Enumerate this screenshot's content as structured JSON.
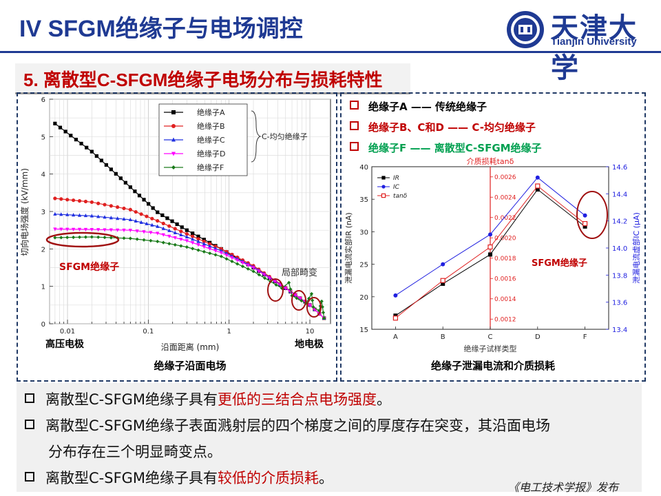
{
  "header": {
    "title": "IV SFGM绝缘子与电场调控",
    "university_cn": "天津大学",
    "university_en": "Tianjin University"
  },
  "section": {
    "subtitle": "5. 离散型C-SFGM绝缘子电场分布与损耗特性"
  },
  "left_chart": {
    "caption": "绝缘子沿面电场",
    "xlabel": "沿面距离 (mm)",
    "ylabel": "切向电场强度 (kV/mm)",
    "legend": [
      "绝缘子A",
      "绝缘子B",
      "绝缘子C",
      "绝缘子D",
      "绝缘子F"
    ],
    "legend_brace_label": "C-均匀绝缘子",
    "annotation_sfgm": "SFGM绝缘子",
    "annotation_distortion": "局部畸变",
    "electrode_left": "高压电极",
    "electrode_right": "地电极",
    "x_ticks": [
      "0.01",
      "0.1",
      "1",
      "10"
    ],
    "y_ticks": [
      "0",
      "1",
      "2",
      "3",
      "4",
      "5",
      "6"
    ]
  },
  "right_panel": {
    "legend_lines": [
      {
        "text": "绝缘子A —— 传统绝缘子",
        "color": "#000000"
      },
      {
        "text": "绝缘子B、C和D —— C-均匀绝缘子",
        "color": "#c00000"
      },
      {
        "text": "绝缘子F —— 离散型C-SFGM绝缘子",
        "color": "#00a050"
      }
    ],
    "caption": "绝缘子泄漏电流和介质损耗"
  },
  "right_chart": {
    "title_top": "介质损耗tanδ",
    "xlabel": "绝缘子试样类型",
    "ylabel_left": "泄漏电流实部IR (nA)",
    "ylabel_right": "泄漏电流虚部IC (μA)",
    "annotation": "SFGM绝缘子",
    "legend": [
      "IR",
      "IC",
      "tanδ"
    ],
    "categories": [
      "A",
      "B",
      "C",
      "D",
      "F"
    ],
    "left_ticks": [
      "15",
      "20",
      "25",
      "30",
      "35",
      "40"
    ],
    "mid_ticks": [
      "0.0012",
      "0.0014",
      "0.0016",
      "0.0018",
      "0.0020",
      "0.0022",
      "0.0024",
      "0.0026"
    ],
    "right_ticks": [
      "13.4",
      "13.6",
      "13.8",
      "14.0",
      "14.2",
      "14.4",
      "14.6"
    ]
  },
  "bullets": [
    {
      "pre": "离散型C-SFGM绝缘子具有",
      "em": "更低的三结合点电场强度",
      "post": "。"
    },
    {
      "pre": "离散型C-SFGM绝缘子表面溅射层的四个梯度之间的厚度存在突变，其沿面电场",
      "em": "",
      "post": ""
    },
    {
      "pre": "分布存在三个明显畸变点。",
      "em": "",
      "post": ""
    },
    {
      "pre": "离散型C-SFGM绝缘子具有",
      "em": "较低的介质损耗",
      "post": "。"
    }
  ],
  "footer": {
    "credit": "《电工技术学报》发布"
  },
  "chart_data": [
    {
      "type": "line",
      "xscale": "log",
      "xlabel": "沿面距离 (mm)",
      "ylabel": "切向电场强度 (kV/mm)",
      "xlim": [
        0.006,
        18
      ],
      "ylim": [
        0,
        6
      ],
      "series": [
        {
          "name": "绝缘子A",
          "color": "#000000",
          "marker": "square",
          "x": [
            0.007,
            0.02,
            0.06,
            0.13,
            0.3,
            0.8,
            2,
            5,
            10,
            15
          ],
          "y": [
            5.35,
            4.6,
            3.65,
            2.98,
            2.5,
            2.0,
            1.5,
            0.95,
            0.5,
            0.15
          ]
        },
        {
          "name": "绝缘子B",
          "color": "#e02020",
          "marker": "circle",
          "x": [
            0.007,
            0.02,
            0.06,
            0.13,
            0.3,
            0.8,
            2,
            5,
            10,
            15
          ],
          "y": [
            3.35,
            3.25,
            3.05,
            2.75,
            2.4,
            2.0,
            1.55,
            0.97,
            0.5,
            0.15
          ]
        },
        {
          "name": "绝缘子C",
          "color": "#2030e0",
          "marker": "triangle-up",
          "x": [
            0.007,
            0.02,
            0.06,
            0.13,
            0.3,
            0.8,
            2,
            5,
            10,
            15
          ],
          "y": [
            2.93,
            2.88,
            2.78,
            2.6,
            2.32,
            1.95,
            1.52,
            0.96,
            0.5,
            0.15
          ]
        },
        {
          "name": "绝缘子D",
          "color": "#ff00ff",
          "marker": "triangle-down",
          "x": [
            0.007,
            0.02,
            0.06,
            0.13,
            0.3,
            0.8,
            2,
            5,
            10,
            15
          ],
          "y": [
            2.53,
            2.52,
            2.5,
            2.42,
            2.22,
            1.9,
            1.5,
            0.95,
            0.5,
            0.15
          ]
        },
        {
          "name": "绝缘子F",
          "color": "#1a7a1a",
          "marker": "diamond",
          "x": [
            0.007,
            0.02,
            0.06,
            0.13,
            0.3,
            0.8,
            2,
            4.5,
            5.5,
            6,
            9,
            10.5,
            11,
            13,
            14,
            15
          ],
          "y": [
            2.3,
            2.32,
            2.28,
            2.2,
            2.05,
            1.8,
            1.4,
            0.95,
            1.1,
            0.75,
            0.55,
            0.8,
            0.45,
            0.35,
            0.6,
            0.15
          ]
        }
      ]
    },
    {
      "type": "line",
      "categories": [
        "A",
        "B",
        "C",
        "D",
        "F"
      ],
      "series": [
        {
          "name": "IR",
          "axis": "left (nA)",
          "color": "#000000",
          "marker": "square",
          "values": [
            17.1,
            22.0,
            26.5,
            36.5,
            30.8
          ]
        },
        {
          "name": "IC",
          "axis": "right (μA)",
          "color": "#2020e0",
          "marker": "circle",
          "values": [
            13.65,
            13.88,
            14.1,
            14.52,
            14.24
          ]
        },
        {
          "name": "tanδ",
          "axis": "middle",
          "color": "#e02020",
          "marker": "open-square",
          "values": [
            0.00121,
            0.00158,
            0.00191,
            0.00251,
            0.00214
          ]
        }
      ],
      "ylim_left": [
        15,
        40
      ],
      "ylim_mid": [
        0.0011,
        0.0027
      ],
      "ylim_right": [
        13.4,
        14.6
      ]
    }
  ]
}
